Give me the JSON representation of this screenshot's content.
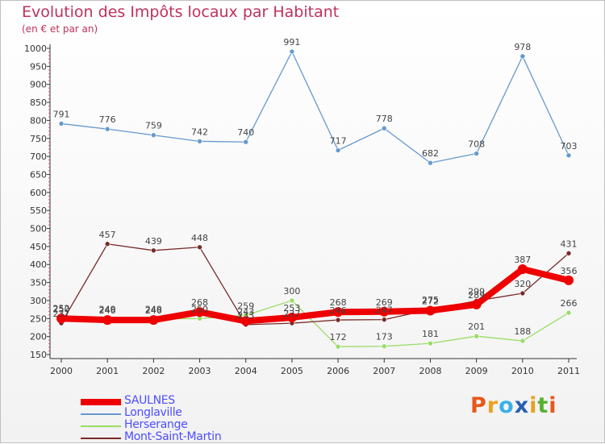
{
  "chart_data": {
    "type": "line",
    "title": "Evolution des Impôts locaux par Habitant",
    "subtitle": "(en € et par an)",
    "x": [
      "2000",
      "2001",
      "2002",
      "2003",
      "2004",
      "2005",
      "2006",
      "2007",
      "2008",
      "2009",
      "2010",
      "2011"
    ],
    "ylim": [
      150,
      1000
    ],
    "yticks": [
      150,
      200,
      250,
      300,
      350,
      400,
      450,
      500,
      550,
      600,
      650,
      700,
      750,
      800,
      850,
      900,
      950,
      1000
    ],
    "grid": false,
    "legend_position": "bottom-left",
    "series": [
      {
        "name": "SAULNES",
        "color": "#ee0000",
        "width": 8,
        "values": [
          250,
          246,
          246,
          268,
          243,
          253,
          268,
          269,
          272,
          289,
          387,
          356
        ],
        "labels": [
          250,
          246,
          246,
          268,
          243,
          253,
          268,
          269,
          272,
          289,
          387,
          356
        ]
      },
      {
        "name": "Longlaville",
        "color": "#6699cc",
        "width": 1.3,
        "values": [
          791,
          776,
          759,
          742,
          740,
          991,
          717,
          778,
          682,
          708,
          978,
          703
        ],
        "labels": [
          791,
          776,
          759,
          742,
          740,
          991,
          717,
          778,
          682,
          708,
          978,
          703
        ]
      },
      {
        "name": "Herserange",
        "color": "#99dd66",
        "width": 1.3,
        "values": [
          252,
          249,
          249,
          250,
          259,
          300,
          172,
          173,
          181,
          201,
          188,
          266
        ],
        "labels": [
          252,
          249,
          249,
          250,
          259,
          300,
          172,
          173,
          181,
          201,
          188,
          266
        ]
      },
      {
        "name": "Mont-Saint-Martin",
        "color": "#7a2a2a",
        "width": 1.3,
        "values": [
          237,
          457,
          439,
          448,
          233,
          237,
          246,
          247,
          275,
          299,
          320,
          431
        ],
        "labels": [
          237,
          457,
          439,
          448,
          233,
          237,
          246,
          247,
          275,
          299,
          320,
          431
        ]
      }
    ]
  },
  "legend": {
    "items": [
      "SAULNES",
      "Longlaville",
      "Herserange",
      "Mont-Saint-Martin"
    ],
    "text_color": "#4d4dff"
  },
  "logo": {
    "text": "Proxiti",
    "letters": [
      "P",
      "r",
      "o",
      "x",
      "i",
      "t",
      "i"
    ],
    "colors": [
      "#e8571c",
      "#f0a020",
      "#3cb0e8",
      "#2a5fb0",
      "#e8a020",
      "#57b030",
      "#e8571c"
    ]
  }
}
